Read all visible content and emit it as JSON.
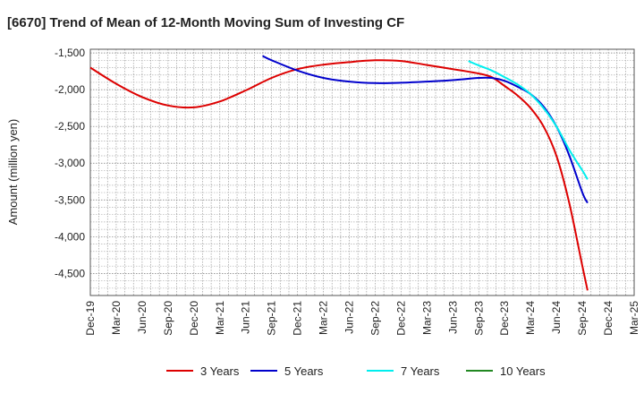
{
  "chart_data": {
    "type": "line",
    "title": "[6670]  Trend of Mean of 12-Month Moving Sum of Investing CF",
    "xlabel": "",
    "ylabel": "Amount (million yen)",
    "ylim": [
      -4800,
      -1450
    ],
    "yticks": [
      -1500,
      -2000,
      -2500,
      -3000,
      -3500,
      -4000,
      -4500
    ],
    "ytick_labels": [
      "-1,500",
      "-2,000",
      "-2,500",
      "-3,000",
      "-3,500",
      "-4,000",
      "-4,500"
    ],
    "x_labels": [
      "Dec-19",
      "Mar-20",
      "Jun-20",
      "Sep-20",
      "Dec-20",
      "Mar-21",
      "Jun-21",
      "Sep-21",
      "Dec-21",
      "Mar-22",
      "Jun-22",
      "Sep-22",
      "Dec-22",
      "Mar-23",
      "Jun-23",
      "Sep-23",
      "Dec-23",
      "Mar-24",
      "Jun-24",
      "Sep-24",
      "Dec-24",
      "Mar-25"
    ],
    "grid": true,
    "legend_position": "bottom",
    "series": [
      {
        "name": "3 Years",
        "color": "#dd0000",
        "points": [
          [
            0,
            -1700
          ],
          [
            1,
            -1920
          ],
          [
            2,
            -2100
          ],
          [
            3,
            -2215
          ],
          [
            4,
            -2240
          ],
          [
            5,
            -2160
          ],
          [
            6,
            -2010
          ],
          [
            7,
            -1840
          ],
          [
            8,
            -1720
          ],
          [
            9,
            -1660
          ],
          [
            10,
            -1625
          ],
          [
            11,
            -1600
          ],
          [
            12,
            -1610
          ],
          [
            13,
            -1665
          ],
          [
            14,
            -1720
          ],
          [
            15,
            -1780
          ],
          [
            15.5,
            -1830
          ],
          [
            16,
            -1950
          ],
          [
            16.5,
            -2080
          ],
          [
            17,
            -2250
          ],
          [
            17.5,
            -2500
          ],
          [
            18,
            -2900
          ],
          [
            18.5,
            -3550
          ],
          [
            19,
            -4400
          ],
          [
            19.2,
            -4730
          ]
        ]
      },
      {
        "name": "5 Years",
        "color": "#0000cc",
        "points": [
          [
            6.65,
            -1540
          ],
          [
            7,
            -1600
          ],
          [
            8,
            -1740
          ],
          [
            9,
            -1840
          ],
          [
            10,
            -1890
          ],
          [
            11,
            -1910
          ],
          [
            12,
            -1905
          ],
          [
            13,
            -1890
          ],
          [
            14,
            -1870
          ],
          [
            15,
            -1840
          ],
          [
            15.5,
            -1840
          ],
          [
            16,
            -1880
          ],
          [
            16.5,
            -1960
          ],
          [
            17,
            -2060
          ],
          [
            17.5,
            -2230
          ],
          [
            18,
            -2500
          ],
          [
            18.5,
            -2900
          ],
          [
            19,
            -3400
          ],
          [
            19.2,
            -3540
          ]
        ]
      },
      {
        "name": "7 Years",
        "color": "#00eeee",
        "points": [
          [
            14.6,
            -1610
          ],
          [
            15,
            -1670
          ],
          [
            15.5,
            -1740
          ],
          [
            16,
            -1830
          ],
          [
            16.5,
            -1930
          ],
          [
            17,
            -2060
          ],
          [
            17.5,
            -2250
          ],
          [
            18,
            -2500
          ],
          [
            18.5,
            -2820
          ],
          [
            19,
            -3100
          ],
          [
            19.2,
            -3220
          ]
        ]
      },
      {
        "name": "10 Years",
        "color": "#228822",
        "points": []
      }
    ]
  }
}
